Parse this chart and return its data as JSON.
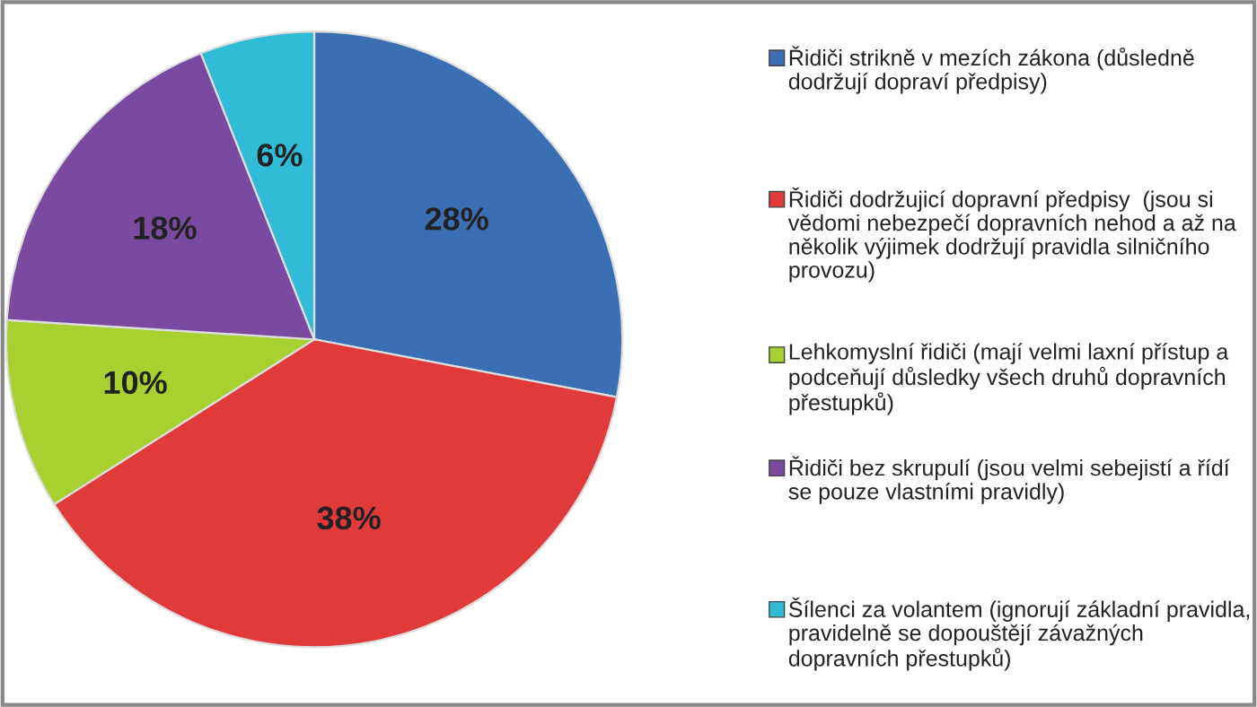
{
  "chart_data": {
    "type": "pie",
    "categories": [
      "Řidiči strikně v mezích zákona (důsledně dodržují dopraví předpisy)",
      "Řidiči dodržujicí dopravní předpisy  (jsou si vědomi nebezpečí dopravních nehod a až na několik výjimek dodržují pravidla silničního provozu)",
      "Lehkomyslní řidiči (mají velmi laxní přístup a podceňují důsledky všech druhů dopravních přestupků)",
      "Řidiči bez skrupulí (jsou velmi sebejistí a řídí se pouze vlastními pravidly)",
      "Šílenci za volantem (ignorují základní pravidla, pravidelně se dopouštějí závažných dopravních přestupků)"
    ],
    "values": [
      28,
      38,
      10,
      18,
      6
    ],
    "colors": [
      "#3b6fb3",
      "#e03a3a",
      "#a8d030",
      "#7a4aa0",
      "#30bcd6"
    ],
    "value_labels": [
      "28%",
      "38%",
      "10%",
      "18%",
      "6%"
    ],
    "legend": "right"
  }
}
